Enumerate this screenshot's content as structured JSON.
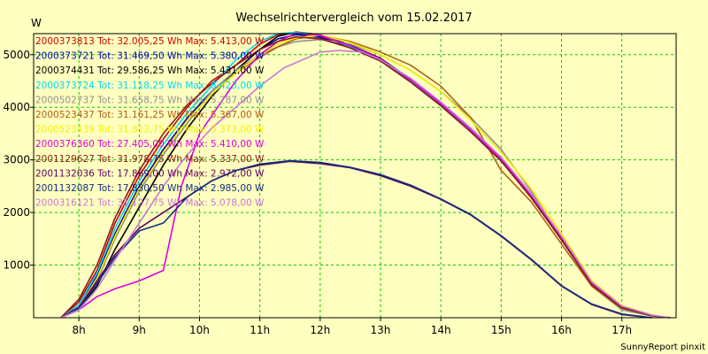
{
  "chart_data": {
    "type": "line",
    "title": "Wechselrichtervergleich vom 15.02.2017",
    "ylabel": "W",
    "xlabel": "",
    "credit": "SunnyReport pinxit",
    "xlim": [
      7.25,
      17.9
    ],
    "ylim": [
      0,
      5400
    ],
    "xticks": [
      {
        "value": 8,
        "label": "8h"
      },
      {
        "value": 9,
        "label": "9h"
      },
      {
        "value": 10,
        "label": "10h"
      },
      {
        "value": 11,
        "label": "11h"
      },
      {
        "value": 12,
        "label": "12h"
      },
      {
        "value": 13,
        "label": "13h"
      },
      {
        "value": 14,
        "label": "14h"
      },
      {
        "value": 15,
        "label": "15h"
      },
      {
        "value": 16,
        "label": "16h"
      },
      {
        "value": 17,
        "label": "17h"
      }
    ],
    "yticks": [
      {
        "value": 1000,
        "label": "1000"
      },
      {
        "value": 2000,
        "label": "2000"
      },
      {
        "value": 3000,
        "label": "3000"
      },
      {
        "value": 4000,
        "label": "4000"
      },
      {
        "value": 5000,
        "label": "5000"
      }
    ],
    "grid": true,
    "legend_position": "top-left",
    "colors": {
      "background": "#ffffc0",
      "grid": "#00cc00",
      "axis": "#000000"
    },
    "series": [
      {
        "name": "2000373813 Tot: 32.005,25 Wh Max: 5.413,00 W",
        "color": "#cc0000",
        "x": [
          7.7,
          8.0,
          8.3,
          8.6,
          9.0,
          9.4,
          9.8,
          10.2,
          10.6,
          11.0,
          11.3,
          11.6,
          12.0,
          12.5,
          13.0,
          13.5,
          14.0,
          14.5,
          15.0,
          15.5,
          16.0,
          16.5,
          17.0,
          17.5,
          17.8
        ],
        "y": [
          0,
          300,
          900,
          1800,
          2700,
          3400,
          4000,
          4500,
          4800,
          5200,
          5380,
          5413,
          5350,
          5150,
          4900,
          4500,
          4050,
          3550,
          3000,
          2300,
          1500,
          650,
          200,
          40,
          0
        ]
      },
      {
        "name": "2000373721 Tot: 31.469,50 Wh Max: 5.380,00 W",
        "color": "#0000b0",
        "x": [
          7.7,
          8.0,
          8.3,
          8.6,
          9.0,
          9.4,
          9.8,
          10.2,
          10.6,
          11.0,
          11.3,
          11.6,
          12.0,
          12.5,
          13.0,
          13.5,
          14.0,
          14.5,
          15.0,
          15.5,
          16.0,
          16.5,
          17.0,
          17.5,
          17.8
        ],
        "y": [
          0,
          200,
          800,
          1600,
          2500,
          3200,
          3800,
          4300,
          4700,
          5100,
          5300,
          5380,
          5330,
          5130,
          4880,
          4480,
          4030,
          3530,
          2980,
          2280,
          1480,
          630,
          190,
          40,
          0
        ]
      },
      {
        "name": "2000374431 Tot: 29.586,25 Wh Max: 5.431,00 W",
        "color": "#000000",
        "x": [
          7.7,
          8.0,
          8.3,
          8.6,
          9.0,
          9.4,
          9.8,
          10.2,
          10.6,
          11.0,
          11.3,
          11.6,
          12.0,
          12.5,
          13.0,
          13.5,
          14.0,
          14.5,
          15.0,
          15.5,
          16.0,
          16.5,
          17.0,
          17.5,
          17.8
        ],
        "y": [
          0,
          150,
          600,
          1300,
          2100,
          2900,
          3600,
          4200,
          4700,
          5100,
          5350,
          5431,
          5380,
          5180,
          4930,
          4530,
          4080,
          3580,
          3030,
          2330,
          1530,
          660,
          200,
          40,
          0
        ]
      },
      {
        "name": "2000373724 Tot: 31.118,25 Wh Max: 5.423,00 W",
        "color": "#00d8f0",
        "x": [
          7.7,
          8.0,
          8.3,
          8.6,
          9.0,
          9.4,
          9.8,
          10.2,
          10.6,
          11.0,
          11.3,
          11.6,
          12.0,
          12.5,
          13.0,
          13.5,
          14.0,
          14.5,
          15.0,
          15.5,
          16.0,
          16.5,
          17.0,
          17.5,
          17.8
        ],
        "y": [
          0,
          250,
          850,
          1700,
          2600,
          3300,
          3900,
          4400,
          4900,
          5250,
          5400,
          5423,
          5380,
          5150,
          4900,
          4500,
          4050,
          3550,
          3000,
          2300,
          1500,
          640,
          190,
          40,
          0
        ]
      },
      {
        "name": "2000502737 Tot: 31.658,75 Wh Max: 5.287,00 W",
        "color": "#909090",
        "x": [
          7.7,
          8.0,
          8.3,
          8.6,
          9.0,
          9.4,
          9.8,
          10.2,
          10.6,
          11.0,
          11.3,
          11.6,
          12.0,
          12.5,
          13.0,
          13.5,
          14.0,
          14.5,
          15.0,
          15.5,
          16.0,
          16.5,
          17.0,
          17.5,
          17.8
        ],
        "y": [
          0,
          180,
          700,
          1500,
          2400,
          3100,
          3700,
          4300,
          4700,
          5000,
          5150,
          5250,
          5287,
          5200,
          5000,
          4700,
          4300,
          3800,
          3200,
          2400,
          1500,
          600,
          150,
          30,
          0
        ]
      },
      {
        "name": "2000523437 Tot: 31.161,25 Wh Max: 5.367,00 W",
        "color": "#b06010",
        "x": [
          7.7,
          8.0,
          8.3,
          8.6,
          9.0,
          9.4,
          9.8,
          10.2,
          10.6,
          11.0,
          11.3,
          11.6,
          12.0,
          12.5,
          13.0,
          13.5,
          14.0,
          14.5,
          15.0,
          15.5,
          16.0,
          16.5,
          17.0,
          17.5,
          17.8
        ],
        "y": [
          0,
          200,
          750,
          1550,
          2450,
          3150,
          3750,
          4250,
          4650,
          4950,
          5150,
          5300,
          5367,
          5250,
          5050,
          4800,
          4400,
          3800,
          2800,
          2200,
          1400,
          600,
          180,
          40,
          0
        ]
      },
      {
        "name": "2000523439 Tot: 31.813,75 Wh Max: 5.373,00 W",
        "color": "#f0f000",
        "x": [
          7.7,
          8.0,
          8.3,
          8.6,
          9.0,
          9.4,
          9.8,
          10.2,
          10.6,
          11.0,
          11.3,
          11.6,
          12.0,
          12.5,
          13.0,
          13.5,
          14.0,
          14.5,
          15.0,
          15.5,
          16.0,
          16.5,
          17.0,
          17.5,
          17.8
        ],
        "y": [
          0,
          200,
          750,
          1550,
          2450,
          3150,
          3750,
          4250,
          4650,
          5000,
          5200,
          5320,
          5373,
          5230,
          5000,
          4700,
          4300,
          3750,
          3150,
          2450,
          1600,
          700,
          230,
          50,
          0
        ]
      },
      {
        "name": "2000376360 Tot: 27.405,00 Wh Max: 5.410,00 W",
        "color": "#e000e0",
        "x": [
          7.7,
          8.0,
          8.3,
          8.6,
          9.0,
          9.4,
          9.7,
          10.0,
          10.3,
          10.6,
          11.0,
          11.3,
          11.6,
          12.0,
          12.5,
          13.0,
          13.5,
          14.0,
          14.5,
          15.0,
          15.5,
          16.0,
          16.5,
          17.0,
          17.5,
          17.8
        ],
        "y": [
          0,
          150,
          400,
          550,
          700,
          900,
          2500,
          3500,
          4000,
          4500,
          5000,
          5250,
          5410,
          5370,
          5170,
          4920,
          4520,
          4070,
          3570,
          3020,
          2320,
          1520,
          650,
          200,
          40,
          0
        ]
      },
      {
        "name": "2001129627 Tot: 31.978,75 Wh Max: 5.337,00 W",
        "color": "#8b1818",
        "x": [
          7.7,
          8.0,
          8.3,
          8.6,
          9.0,
          9.4,
          9.8,
          10.2,
          10.6,
          11.0,
          11.3,
          11.6,
          12.0,
          12.5,
          13.0,
          13.5,
          14.0,
          14.5,
          15.0,
          15.5,
          16.0,
          16.5,
          17.0,
          17.5,
          17.8
        ],
        "y": [
          0,
          350,
          1000,
          1900,
          2800,
          3500,
          4050,
          4450,
          4800,
          5100,
          5250,
          5337,
          5300,
          5130,
          4880,
          4480,
          4030,
          3530,
          2980,
          2280,
          1480,
          630,
          190,
          40,
          0
        ]
      },
      {
        "name": "2001132036 Tot: 17.869,00 Wh Max: 2.972,00 W",
        "color": "#600060",
        "x": [
          7.7,
          8.0,
          8.3,
          8.6,
          9.0,
          9.4,
          9.8,
          10.2,
          10.6,
          11.0,
          11.5,
          12.0,
          12.5,
          13.0,
          13.5,
          14.0,
          14.5,
          15.0,
          15.5,
          16.0,
          16.5,
          17.0,
          17.5
        ],
        "y": [
          0,
          200,
          700,
          1200,
          1700,
          2000,
          2300,
          2600,
          2800,
          2900,
          2972,
          2930,
          2850,
          2700,
          2500,
          2250,
          1950,
          1550,
          1100,
          600,
          250,
          60,
          0
        ]
      },
      {
        "name": "2001132087 Tot: 17.830,50 Wh Max: 2.985,00 W",
        "color": "#103080",
        "x": [
          7.7,
          8.0,
          8.3,
          8.6,
          9.0,
          9.4,
          9.8,
          10.2,
          10.6,
          11.0,
          11.5,
          12.0,
          12.5,
          13.0,
          13.5,
          14.0,
          14.5,
          15.0,
          15.5,
          16.0,
          16.5,
          17.0,
          17.5
        ],
        "y": [
          0,
          180,
          650,
          1150,
          1650,
          1800,
          2300,
          2600,
          2800,
          2920,
          2985,
          2950,
          2860,
          2720,
          2520,
          2260,
          1960,
          1560,
          1110,
          610,
          260,
          70,
          0
        ]
      },
      {
        "name": "2000316121 Tot: 31.127,75 Wh Max: 5.078,00 W",
        "color": "#c878d8",
        "x": [
          7.7,
          8.0,
          8.3,
          8.6,
          9.0,
          9.4,
          9.8,
          10.2,
          10.6,
          11.0,
          11.4,
          11.8,
          12.0,
          12.3,
          12.7,
          13.0,
          13.5,
          14.0,
          14.5,
          15.0,
          15.5,
          16.0,
          16.5,
          17.0,
          17.5,
          17.8
        ],
        "y": [
          0,
          150,
          550,
          1100,
          1800,
          2500,
          3100,
          3600,
          4000,
          4400,
          4750,
          4950,
          5050,
          5078,
          5050,
          4900,
          4550,
          4100,
          3600,
          3050,
          2350,
          1550,
          680,
          220,
          50,
          0
        ]
      }
    ]
  }
}
